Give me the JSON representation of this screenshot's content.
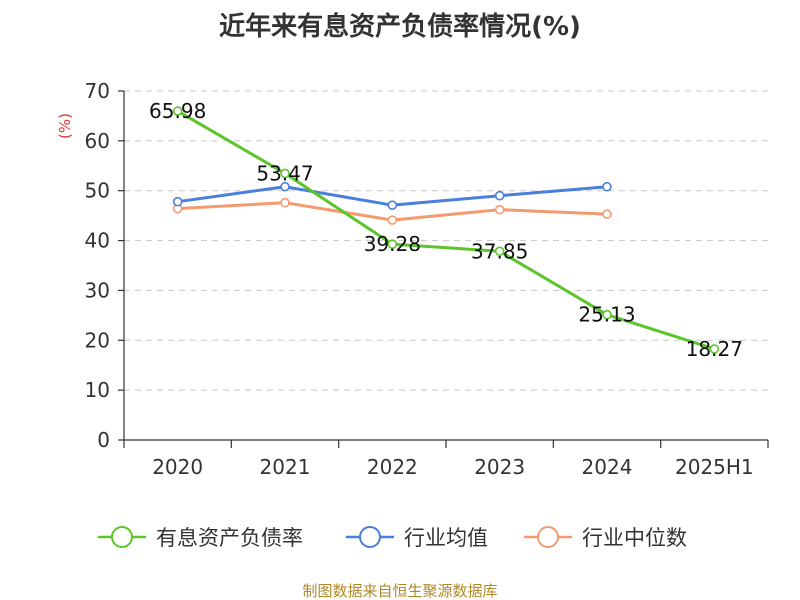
{
  "chart_data": {
    "type": "line",
    "title": "近年来有息资产负债率情况(%)",
    "ylabel": "(%)",
    "xlabel": "",
    "ylim": [
      0,
      70
    ],
    "yticks": [
      0,
      10,
      20,
      30,
      40,
      50,
      60,
      70
    ],
    "categories": [
      "2020",
      "2021",
      "2022",
      "2023",
      "2024",
      "2025H1"
    ],
    "grid": "horizontal-dashed",
    "legend_position": "bottom",
    "series": [
      {
        "name": "有息资产负债率",
        "color": "#5cc52b",
        "values": [
          65.98,
          53.47,
          39.28,
          37.85,
          25.13,
          18.27
        ],
        "labels": [
          "65.98",
          "53.47",
          "39.28",
          "37.85",
          "25.13",
          "18.27"
        ]
      },
      {
        "name": "行业均值",
        "color": "#4a7fdc",
        "values": [
          47.8,
          50.8,
          47.1,
          49.0,
          50.8,
          null
        ]
      },
      {
        "name": "行业中位数",
        "color": "#f59a6e",
        "values": [
          46.4,
          47.6,
          44.1,
          46.2,
          45.3,
          null
        ]
      }
    ]
  },
  "source": "制图数据来自恒生聚源数据库"
}
